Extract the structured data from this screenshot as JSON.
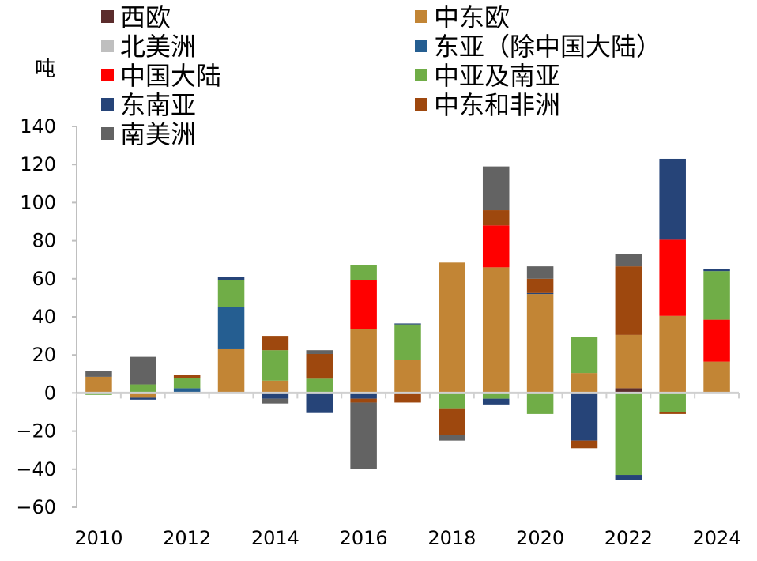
{
  "chart_data": {
    "type": "bar",
    "stacked": true,
    "ylabel": "吨",
    "ylim": [
      -60,
      140
    ],
    "yticks": [
      -60,
      -40,
      -20,
      0,
      20,
      40,
      60,
      80,
      100,
      120,
      140
    ],
    "categories": [
      "2010",
      "2011",
      "2012",
      "2013",
      "2014",
      "2015",
      "2016",
      "2017",
      "2018",
      "2019",
      "2020",
      "2021",
      "2022",
      "2023",
      "2024"
    ],
    "xtick_labels": [
      "2010",
      "",
      "2012",
      "",
      "2014",
      "",
      "2016",
      "",
      "2018",
      "",
      "2020",
      "",
      "2022",
      "",
      "2024"
    ],
    "legend_position": "top",
    "series": [
      {
        "name": "西欧",
        "color": "#5B2C2C",
        "values": [
          0,
          0,
          0,
          0,
          0,
          0,
          0,
          0,
          0,
          0,
          0,
          0,
          2.5,
          0,
          0
        ]
      },
      {
        "name": "中东欧",
        "color": "#C28535",
        "values": [
          8.5,
          -2.5,
          0,
          23,
          6.5,
          0,
          33.5,
          17.5,
          68.5,
          66,
          52,
          10.5,
          28,
          40.5,
          16.5
        ]
      },
      {
        "name": "北美洲",
        "color": "#BFBFBF",
        "values": [
          0,
          0,
          0,
          0,
          0,
          0,
          0,
          0,
          0,
          0,
          0,
          0,
          0,
          0,
          0
        ]
      },
      {
        "name": "东亚（除中国大陆）",
        "color": "#255E91",
        "values": [
          0,
          0,
          2.5,
          22,
          0,
          0,
          0,
          0,
          0,
          0,
          0,
          0,
          0,
          0,
          0
        ]
      },
      {
        "name": "中国大陆",
        "color": "#FF0000",
        "values": [
          0,
          0,
          0,
          0,
          0,
          0,
          26,
          0,
          0,
          22,
          0,
          0,
          0,
          40,
          22
        ]
      },
      {
        "name": "中亚及南亚",
        "color": "#70AD47",
        "values": [
          -1,
          4.5,
          5.5,
          14.5,
          16,
          7.5,
          7.5,
          18.5,
          -8,
          -3,
          -11,
          19,
          -43,
          -10,
          25.5
        ]
      },
      {
        "name": "东南亚",
        "color": "#264478",
        "values": [
          0,
          -1,
          0,
          1.5,
          -3,
          -10.5,
          -3,
          0.5,
          0,
          -3,
          0.5,
          -25,
          -2.5,
          42.5,
          1
        ]
      },
      {
        "name": "中东和非洲",
        "color": "#9E480E",
        "values": [
          0,
          0,
          1.5,
          0,
          7.5,
          13,
          -2,
          -5,
          -14,
          8,
          7.5,
          -4,
          36,
          -1,
          0
        ]
      },
      {
        "name": "南美洲",
        "color": "#636363",
        "values": [
          3,
          14.5,
          0,
          0,
          -2.5,
          2,
          -35,
          0,
          -3,
          23,
          6.5,
          0,
          6.5,
          0,
          0
        ]
      }
    ]
  }
}
